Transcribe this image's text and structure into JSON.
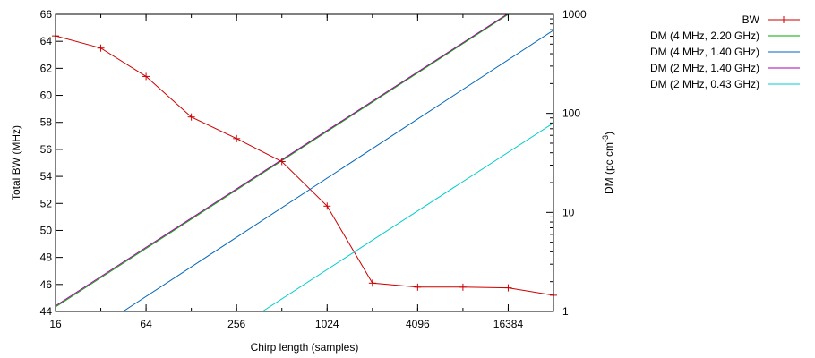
{
  "chart_data": {
    "type": "line",
    "xlabel": "Chirp length (samples)",
    "ylabel_left": "Total BW (MHz)",
    "ylabel_right_main": "DM (pc cm",
    "ylabel_right_sup": "-3",
    "ylabel_right_close": ")",
    "x_scale": "log2",
    "xlim": [
      16,
      32768
    ],
    "xticks": [
      16,
      64,
      256,
      1024,
      4096,
      16384
    ],
    "ylim_left": [
      44,
      66
    ],
    "yticks_left": [
      44,
      46,
      48,
      50,
      52,
      54,
      56,
      58,
      60,
      62,
      64,
      66
    ],
    "y_scale_right": "log10",
    "ylim_right": [
      1,
      1000
    ],
    "yticks_right": [
      1,
      10,
      100,
      1000
    ],
    "grid": false,
    "legend_position": "outside-right",
    "series": [
      {
        "name": "BW",
        "axis": "left",
        "color": "#cc0000",
        "marker": "plus",
        "x": [
          16,
          32,
          64,
          128,
          256,
          512,
          1024,
          2048,
          4096,
          8192,
          16384,
          32768
        ],
        "y": [
          64.4,
          63.5,
          61.4,
          58.4,
          56.8,
          55.1,
          51.8,
          46.1,
          45.8,
          45.8,
          45.75,
          45.2
        ]
      },
      {
        "name": "DM (4 MHz, 2.20 GHz)",
        "axis": "right",
        "color": "#00aa00",
        "marker": "none",
        "x": [
          16,
          16384
        ],
        "y": [
          1.11,
          1000
        ]
      },
      {
        "name": "DM (4 MHz, 1.40 GHz)",
        "axis": "right",
        "color": "#0066bb",
        "marker": "none",
        "x": [
          45,
          32768
        ],
        "y": [
          1.0,
          690
        ]
      },
      {
        "name": "DM (2 MHz, 1.40 GHz)",
        "axis": "right",
        "color": "#aa00aa",
        "marker": "none",
        "x": [
          16,
          16384
        ],
        "y": [
          1.14,
          1020
        ]
      },
      {
        "name": "DM (2 MHz, 0.43 GHz)",
        "axis": "right",
        "color": "#00cccc",
        "marker": "none",
        "x": [
          380,
          32768
        ],
        "y": [
          1.0,
          80
        ]
      }
    ]
  }
}
